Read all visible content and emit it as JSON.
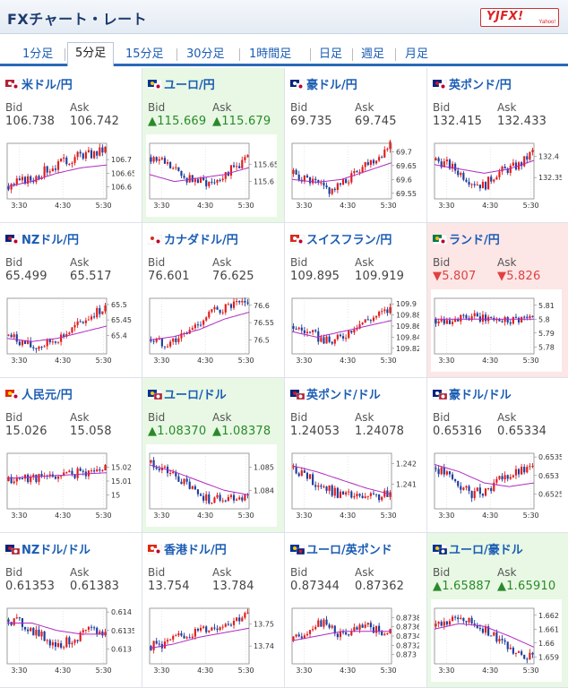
{
  "header": {
    "title": "FXチャート・レート",
    "logo": {
      "main": "YJFX!",
      "sub": "Yahoo!"
    }
  },
  "tabs": [
    {
      "label": "1分足"
    },
    {
      "label": "5分足",
      "active": true
    },
    {
      "label": "15分足"
    },
    {
      "label": "30分足"
    },
    {
      "label": "1時間足"
    },
    {
      "label": "日足"
    },
    {
      "label": "週足"
    },
    {
      "label": "月足"
    }
  ],
  "labels": {
    "bid": "Bid",
    "ask": "Ask"
  },
  "colors": {
    "up_candle": "#e21d1d",
    "down_candle": "#1f3f9e",
    "ma_line": "#b02bc0",
    "up_text": "#2a8a2a",
    "down_text": "#e04040",
    "up_bg": "#e8f8e4",
    "down_bg": "#fde6e6"
  },
  "pairs": [
    {
      "name": "米ドル/円",
      "bid": "106.738",
      "ask": "106.742",
      "state": "flat",
      "flag": "us-jp-flag-icon",
      "chart_data": {
        "type": "candlestick",
        "x_ticks": [
          "3:30",
          "4:30",
          "5:30"
        ],
        "y_ticks": [
          "106.7",
          "106.65",
          "106.6"
        ],
        "y_range": [
          106.555,
          106.76
        ],
        "trend": [
          106.6,
          106.62,
          106.63,
          106.66,
          106.68,
          106.7,
          106.72,
          106.72,
          106.74
        ],
        "ma": [
          106.6,
          106.62,
          106.65,
          106.67,
          106.68
        ]
      }
    },
    {
      "name": "ユーロ/円",
      "bid": "115.669",
      "ask": "115.679",
      "state": "up",
      "flag": "eu-jp-flag-icon",
      "chart_data": {
        "type": "candlestick",
        "x_ticks": [
          "3:30",
          "4:30",
          "5:30"
        ],
        "y_ticks": [
          "115.65",
          "115.6"
        ],
        "y_range": [
          115.55,
          115.71
        ],
        "trend": [
          115.67,
          115.66,
          115.63,
          115.61,
          115.6,
          115.6,
          115.62,
          115.64,
          115.67
        ],
        "ma": [
          115.62,
          115.6,
          115.61,
          115.62,
          115.64
        ]
      }
    },
    {
      "name": "豪ドル/円",
      "bid": "69.735",
      "ask": "69.745",
      "state": "flat",
      "flag": "au-jp-flag-icon",
      "chart_data": {
        "type": "candlestick",
        "x_ticks": [
          "3:30",
          "4:30",
          "5:30"
        ],
        "y_ticks": [
          "69.7",
          "69.65",
          "69.6",
          "69.55"
        ],
        "y_range": [
          69.53,
          69.73
        ],
        "trend": [
          69.62,
          69.6,
          69.58,
          69.56,
          69.58,
          69.62,
          69.66,
          69.68,
          69.73
        ],
        "ma": [
          69.6,
          69.59,
          69.6,
          69.63,
          69.66
        ]
      }
    },
    {
      "name": "英ポンド/円",
      "bid": "132.415",
      "ask": "132.433",
      "state": "flat",
      "flag": "gb-jp-flag-icon",
      "chart_data": {
        "type": "candlestick",
        "x_ticks": [
          "3:30",
          "4:30",
          "5:30"
        ],
        "y_ticks": [
          "132.4",
          "132.35"
        ],
        "y_range": [
          132.3,
          132.43
        ],
        "trend": [
          132.39,
          132.38,
          132.36,
          132.34,
          132.33,
          132.36,
          132.37,
          132.38,
          132.41
        ],
        "ma": [
          132.38,
          132.37,
          132.36,
          132.37,
          132.39
        ]
      }
    },
    {
      "name": "NZドル/円",
      "bid": "65.499",
      "ask": "65.517",
      "state": "flat",
      "flag": "nz-jp-flag-icon",
      "chart_data": {
        "type": "candlestick",
        "x_ticks": [
          "3:30",
          "4:30",
          "5:30"
        ],
        "y_ticks": [
          "65.5",
          "65.45",
          "65.4"
        ],
        "y_range": [
          65.34,
          65.52
        ],
        "trend": [
          65.4,
          65.38,
          65.36,
          65.37,
          65.39,
          65.41,
          65.44,
          65.47,
          65.49
        ],
        "ma": [
          65.39,
          65.38,
          65.39,
          65.41,
          65.43
        ]
      }
    },
    {
      "name": "カナダドル/円",
      "bid": "76.601",
      "ask": "76.625",
      "state": "flat",
      "flag": "ca-jp-flag-icon",
      "chart_data": {
        "type": "candlestick",
        "x_ticks": [
          "3:30",
          "4:30",
          "5:30"
        ],
        "y_ticks": [
          "76.6",
          "76.55",
          "76.5"
        ],
        "y_range": [
          76.46,
          76.62
        ],
        "trend": [
          76.5,
          76.49,
          76.5,
          76.52,
          76.55,
          76.58,
          76.59,
          76.6,
          76.6
        ],
        "ma": [
          76.5,
          76.51,
          76.53,
          76.56,
          76.58
        ]
      }
    },
    {
      "name": "スイスフラン/円",
      "bid": "109.895",
      "ask": "109.919",
      "state": "flat",
      "flag": "ch-jp-flag-icon",
      "chart_data": {
        "type": "candlestick",
        "x_ticks": [
          "3:30",
          "4:30",
          "5:30"
        ],
        "y_ticks": [
          "109.9",
          "109.88",
          "109.86",
          "109.84",
          "109.82"
        ],
        "y_range": [
          109.81,
          109.91
        ],
        "trend": [
          109.86,
          109.85,
          109.84,
          109.83,
          109.84,
          109.86,
          109.87,
          109.88,
          109.89
        ],
        "ma": [
          109.85,
          109.84,
          109.85,
          109.86,
          109.87
        ]
      }
    },
    {
      "name": "ランド/円",
      "bid": "5.807",
      "ask": "5.826",
      "state": "down",
      "flag": "za-jp-flag-icon",
      "chart_data": {
        "type": "candlestick",
        "x_ticks": [
          "3:30",
          "4:30",
          "5:30"
        ],
        "y_ticks": [
          "5.81",
          "5.8",
          "5.79",
          "5.78"
        ],
        "y_range": [
          5.775,
          5.815
        ],
        "trend": [
          5.8,
          5.8,
          5.8,
          5.801,
          5.8,
          5.8,
          5.8,
          5.801,
          5.8
        ],
        "ma": [
          5.8,
          5.8,
          5.8,
          5.8,
          5.8
        ]
      }
    },
    {
      "name": "人民元/円",
      "bid": "15.026",
      "ask": "15.058",
      "state": "flat",
      "flag": "cn-jp-flag-icon",
      "chart_data": {
        "type": "candlestick",
        "x_ticks": [
          "3:30",
          "4:30",
          "5:30"
        ],
        "y_ticks": [
          "15.02",
          "15.01",
          "15"
        ],
        "y_range": [
          14.99,
          15.03
        ],
        "trend": [
          15.01,
          15.012,
          15.013,
          15.012,
          15.014,
          15.015,
          15.016,
          15.017,
          15.02
        ],
        "ma": [
          15.012,
          15.013,
          15.014,
          15.015,
          15.016
        ]
      }
    },
    {
      "name": "ユーロ/ドル",
      "bid": "1.08370",
      "ask": "1.08378",
      "state": "up",
      "flag": "eu-us-flag-icon",
      "chart_data": {
        "type": "candlestick",
        "x_ticks": [
          "3:30",
          "4:30",
          "5:30"
        ],
        "y_ticks": [
          "1.085",
          "1.084"
        ],
        "y_range": [
          1.0832,
          1.0856
        ],
        "trend": [
          1.0852,
          1.0849,
          1.0846,
          1.0842,
          1.0838,
          1.0836,
          1.0837,
          1.0837,
          1.0837
        ],
        "ma": [
          1.0851,
          1.0848,
          1.0844,
          1.084,
          1.0838
        ]
      }
    },
    {
      "name": "英ポンド/ドル",
      "bid": "1.24053",
      "ask": "1.24078",
      "state": "flat",
      "flag": "gb-us-flag-icon",
      "chart_data": {
        "type": "candlestick",
        "x_ticks": [
          "3:30",
          "4:30",
          "5:30"
        ],
        "y_ticks": [
          "1.242",
          "1.241"
        ],
        "y_range": [
          1.2398,
          1.2425
        ],
        "trend": [
          1.2418,
          1.2414,
          1.241,
          1.2407,
          1.2405,
          1.2404,
          1.2403,
          1.2404,
          1.2405
        ],
        "ma": [
          1.2419,
          1.2416,
          1.2412,
          1.2408,
          1.2405
        ]
      }
    },
    {
      "name": "豪ドル/ドル",
      "bid": "0.65316",
      "ask": "0.65334",
      "state": "flat",
      "flag": "au-us-flag-icon",
      "chart_data": {
        "type": "candlestick",
        "x_ticks": [
          "3:30",
          "4:30",
          "5:30"
        ],
        "y_ticks": [
          "0.6535",
          "0.653",
          "0.6525"
        ],
        "y_range": [
          0.6521,
          0.6536
        ],
        "trend": [
          0.6532,
          0.653,
          0.6527,
          0.6525,
          0.6526,
          0.6528,
          0.653,
          0.6531,
          0.6532
        ],
        "ma": [
          0.6533,
          0.6531,
          0.6528,
          0.6527,
          0.6528
        ]
      }
    },
    {
      "name": "NZドル/ドル",
      "bid": "0.61353",
      "ask": "0.61383",
      "state": "flat",
      "flag": "nz-us-flag-icon",
      "chart_data": {
        "type": "candlestick",
        "x_ticks": [
          "3:30",
          "4:30",
          "5:30"
        ],
        "y_ticks": [
          "0.614",
          "0.6135",
          "0.613"
        ],
        "y_range": [
          0.6126,
          0.6141
        ],
        "trend": [
          0.6138,
          0.6137,
          0.6135,
          0.6133,
          0.6131,
          0.6132,
          0.6134,
          0.6135,
          0.6134
        ],
        "ma": [
          0.6137,
          0.6137,
          0.6135,
          0.6134,
          0.6134
        ]
      }
    },
    {
      "name": "香港ドル/円",
      "bid": "13.754",
      "ask": "13.784",
      "state": "flat",
      "flag": "hk-jp-flag-icon",
      "chart_data": {
        "type": "candlestick",
        "x_ticks": [
          "3:30",
          "4:30",
          "5:30"
        ],
        "y_ticks": [
          "13.75",
          "13.74"
        ],
        "y_range": [
          13.732,
          13.757
        ],
        "trend": [
          13.74,
          13.741,
          13.743,
          13.745,
          13.747,
          13.748,
          13.75,
          13.752,
          13.754
        ],
        "ma": [
          13.739,
          13.741,
          13.744,
          13.746,
          13.748
        ]
      }
    },
    {
      "name": "ユーロ/英ポンド",
      "bid": "0.87344",
      "ask": "0.87362",
      "state": "flat",
      "flag": "eu-gb-flag-icon",
      "chart_data": {
        "type": "candlestick",
        "x_ticks": [
          "3:30",
          "4:30",
          "5:30"
        ],
        "y_ticks": [
          "0.8738",
          "0.8736",
          "0.8734",
          "0.8732",
          "0.873"
        ],
        "y_range": [
          0.8728,
          0.874
        ],
        "trend": [
          0.8733,
          0.8735,
          0.8737,
          0.8736,
          0.8734,
          0.8735,
          0.8736,
          0.8735,
          0.8735
        ],
        "ma": [
          0.8733,
          0.8734,
          0.8735,
          0.8735,
          0.8735
        ]
      }
    },
    {
      "name": "ユーロ/豪ドル",
      "bid": "1.65887",
      "ask": "1.65910",
      "state": "up",
      "flag": "eu-au-flag-icon",
      "chart_data": {
        "type": "candlestick",
        "x_ticks": [
          "3:30",
          "4:30",
          "5:30"
        ],
        "y_ticks": [
          "1.662",
          "1.661",
          "1.66",
          "1.659"
        ],
        "y_range": [
          1.6585,
          1.6625
        ],
        "trend": [
          1.6612,
          1.6615,
          1.6618,
          1.6614,
          1.661,
          1.6603,
          1.6597,
          1.6593,
          1.659
        ],
        "ma": [
          1.661,
          1.6614,
          1.6612,
          1.6605,
          1.6597
        ]
      }
    }
  ]
}
